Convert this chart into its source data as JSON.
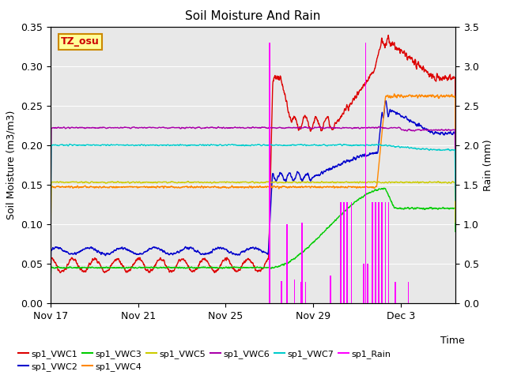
{
  "title": "Soil Moisture And Rain",
  "xlabel": "Time",
  "ylabel_left": "Soil Moisture (m3/m3)",
  "ylabel_right": "Rain (mm)",
  "ylim_left": [
    0.0,
    0.35
  ],
  "ylim_right": [
    0.0,
    3.5
  ],
  "plot_bg": "#e8e8e8",
  "fig_bg": "#ffffff",
  "annotation_text": "TZ_osu",
  "annotation_fg": "#cc0000",
  "annotation_bg": "#ffff99",
  "annotation_border": "#cc8800",
  "series_colors": {
    "sp1_VWC1": "#dd0000",
    "sp1_VWC2": "#0000cc",
    "sp1_VWC3": "#00cc00",
    "sp1_VWC4": "#ff8800",
    "sp1_VWC5": "#cccc00",
    "sp1_VWC6": "#aa00aa",
    "sp1_VWC7": "#00cccc",
    "sp1_Rain": "#ff00ff"
  },
  "xlim": [
    0,
    18.5
  ],
  "xtick_positions": [
    0,
    4,
    8,
    12,
    16
  ],
  "xtick_labels": [
    "Nov 17",
    "Nov 21",
    "Nov 25",
    "Nov 29",
    "Dec 3"
  ],
  "legend_labels": [
    "sp1_VWC1",
    "sp1_VWC2",
    "sp1_VWC3",
    "sp1_VWC4",
    "sp1_VWC5",
    "sp1_VWC6",
    "sp1_VWC7",
    "sp1_Rain"
  ],
  "grid_color": "#ffffff",
  "title_fontsize": 11,
  "axis_fontsize": 9,
  "tick_fontsize": 9,
  "legend_fontsize": 8
}
